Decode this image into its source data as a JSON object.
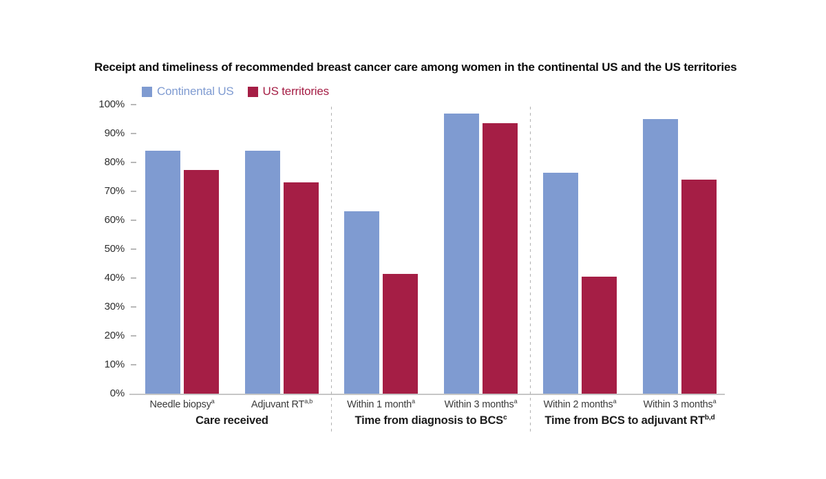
{
  "title": "Receipt and timeliness of recommended breast cancer care among women in the continental US and the US territories",
  "legend": [
    {
      "label": "Continental US",
      "color": "#7f9bd1"
    },
    {
      "label": "US territories",
      "color": "#a51e45"
    }
  ],
  "chart_data": {
    "type": "bar",
    "title": "Receipt and timeliness of recommended breast cancer care among women in the continental US and the US territories",
    "ylabel": "",
    "ylim": [
      0,
      100
    ],
    "ytick_step": 10,
    "ytick_suffix": "%",
    "grid": false,
    "legend_position": "top-left",
    "series": [
      {
        "name": "Continental US",
        "color": "#7f9bd1",
        "values": [
          84,
          84,
          63,
          97,
          76.5,
          95
        ]
      },
      {
        "name": "US territories",
        "color": "#a51e45",
        "values": [
          77.5,
          73,
          41.5,
          93.5,
          40.5,
          74
        ]
      }
    ],
    "groups": [
      {
        "title": "Care received",
        "title_sup": "",
        "categories": [
          {
            "label": "Needle biopsy",
            "sup": "a"
          },
          {
            "label": "Adjuvant RT",
            "sup": "a,b"
          }
        ]
      },
      {
        "title": "Time from diagnosis to BCS",
        "title_sup": "c",
        "categories": [
          {
            "label": "Within 1 month",
            "sup": "a"
          },
          {
            "label": "Within 3 months",
            "sup": "a"
          }
        ]
      },
      {
        "title": "Time from BCS to adjuvant RT",
        "title_sup": "b,d",
        "categories": [
          {
            "label": "Within 2 months",
            "sup": "a"
          },
          {
            "label": "Within 3 months",
            "sup": "a"
          }
        ]
      }
    ]
  }
}
